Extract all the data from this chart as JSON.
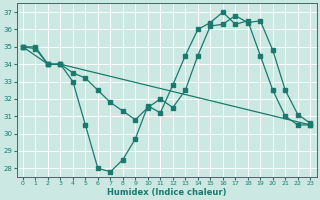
{
  "xlabel": "Humidex (Indice chaleur)",
  "bg_color": "#cbe8e3",
  "grid_color": "#ffffff",
  "line_color": "#1a7a6e",
  "ylim": [
    27.5,
    37.5
  ],
  "xlim": [
    -0.5,
    23.5
  ],
  "yticks": [
    28,
    29,
    30,
    31,
    32,
    33,
    34,
    35,
    36,
    37
  ],
  "xticks": [
    0,
    1,
    2,
    3,
    4,
    5,
    6,
    7,
    8,
    9,
    10,
    11,
    12,
    13,
    14,
    15,
    16,
    17,
    18,
    19,
    20,
    21,
    22,
    23
  ],
  "line1_x": [
    0,
    1,
    2,
    3,
    4,
    5,
    6,
    7,
    8,
    9,
    10,
    11,
    12,
    13,
    14,
    15,
    16,
    17,
    18,
    19,
    20,
    21,
    22,
    23
  ],
  "line1_y": [
    35.0,
    35.0,
    34.0,
    34.0,
    33.0,
    30.5,
    28.0,
    27.8,
    28.5,
    29.7,
    31.6,
    31.2,
    32.8,
    34.5,
    36.0,
    36.4,
    37.0,
    36.3,
    36.5,
    34.5,
    32.5,
    31.0,
    30.5,
    30.5
  ],
  "line2_x": [
    0,
    2,
    3,
    23
  ],
  "line2_y": [
    35.0,
    34.0,
    34.0,
    30.5
  ],
  "line3_x": [
    0,
    1,
    2,
    3,
    4,
    5,
    6,
    7,
    8,
    9,
    10,
    11,
    12,
    13,
    14,
    15,
    16,
    17,
    18,
    19,
    20,
    21,
    22,
    23
  ],
  "line3_y": [
    35.0,
    34.9,
    34.0,
    34.0,
    33.5,
    33.2,
    32.5,
    31.8,
    31.3,
    30.8,
    31.5,
    32.0,
    31.5,
    32.5,
    34.5,
    36.2,
    36.3,
    36.8,
    36.4,
    36.5,
    34.8,
    32.5,
    31.1,
    30.6
  ]
}
